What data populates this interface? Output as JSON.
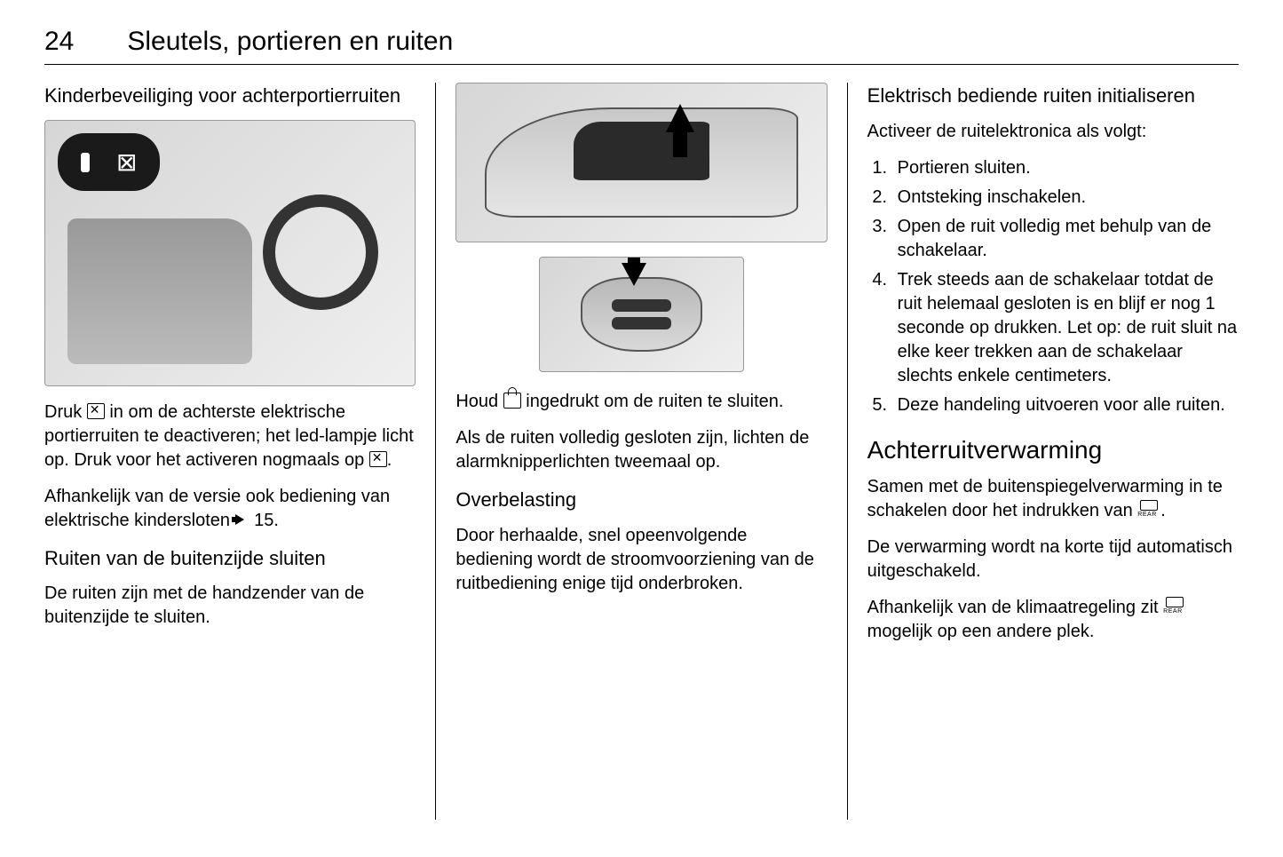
{
  "page_number": "24",
  "chapter_title": "Sleutels, portieren en ruiten",
  "col1": {
    "heading1": "Kinderbeveiliging voor achterportierruiten",
    "fig1_alt": "Interior door panel with child-lock window switch callout",
    "p1a": "Druk ",
    "p1b": " in om de achterste elektrische portierruiten te deactiveren; het led-lampje licht op. Druk voor het activeren nogmaals op ",
    "p1c": ".",
    "p2a": "Afhankelijk van de versie ook bediening van elektrische kindersloten ",
    "p2_ref": " 15.",
    "heading2": "Ruiten van de buitenzijde sluiten",
    "p3": "De ruiten zijn met de handzender van de buitenzijde te sluiten."
  },
  "col2": {
    "fig_car_alt": "Car side view with window closing upward arrow",
    "fig_key_alt": "Remote key with lock button and downward press arrow",
    "p1a": "Houd ",
    "p1b": " ingedrukt om de ruiten te sluiten.",
    "p2": "Als de ruiten volledig gesloten zijn, lichten de alarmknipperlichten tweemaal op.",
    "heading1": "Overbelasting",
    "p3": "Door herhaalde, snel opeenvolgende bediening wordt de stroomvoorziening van de ruitbediening enige tijd onderbroken."
  },
  "col3": {
    "heading1": "Elektrisch bediende ruiten initialiseren",
    "intro": "Activeer de ruitelektronica als volgt:",
    "steps": [
      "Portieren sluiten.",
      "Ontsteking inschakelen.",
      "Open de ruit volledig met behulp van de schakelaar.",
      "Trek steeds aan de schakelaar totdat de ruit helemaal gesloten is en blijf er nog 1 seconde op drukken. Let op: de ruit sluit na elke keer trekken aan de schakelaar slechts enkele centimeters.",
      "Deze handeling uitvoeren voor alle ruiten."
    ],
    "heading2": "Achterruitverwarming",
    "p1a": "Samen met de buitenspiegelverwarming in te schakelen door het indrukken van ",
    "p1b": ".",
    "p2": "De verwarming wordt na korte tijd automatisch uitgeschakeld.",
    "p3a": "Afhankelijk van de klimaatregeling zit ",
    "p3b": " mogelijk op een andere plek."
  }
}
